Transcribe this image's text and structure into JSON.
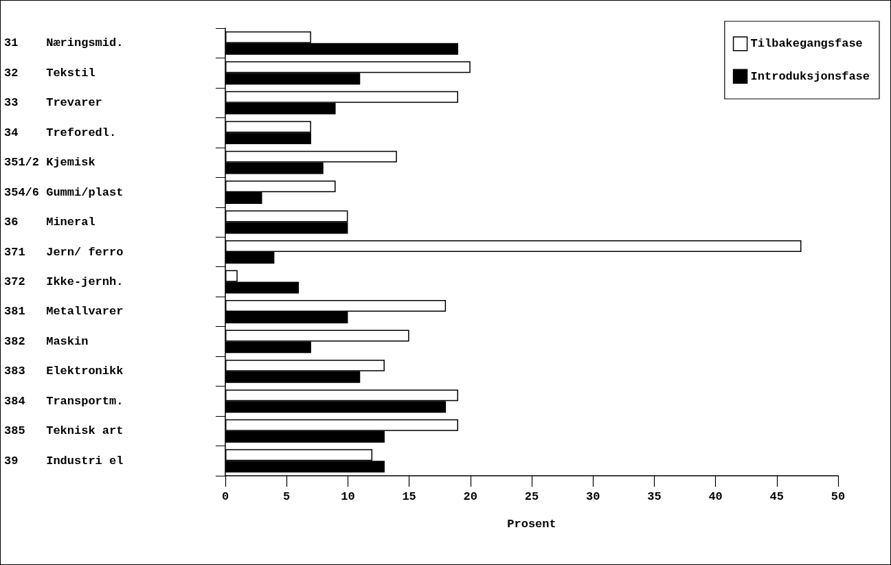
{
  "chart_data": {
    "type": "bar",
    "orientation": "horizontal",
    "xlabel": "Prosent",
    "categories": [
      "31    Næringsmid.",
      "32    Tekstil",
      "33    Trevarer",
      "34    Treforedl.",
      "351/2 Kjemisk",
      "354/6 Gummi/plast",
      "36    Mineral",
      "371   Jern/ ferro",
      "372   Ikke-jernh.",
      "381   Metallvarer",
      "382   Maskin",
      "383   Elektronikk",
      "384   Transportm.",
      "385   Teknisk art",
      "39    Industri el"
    ],
    "series": [
      {
        "name": "Tilbakegangsfase",
        "color": "#ffffff",
        "values": [
          7,
          20,
          19,
          7,
          14,
          9,
          10,
          47,
          1,
          18,
          15,
          13,
          19,
          19,
          12
        ]
      },
      {
        "name": "Introduksjonsfase",
        "color": "#000000",
        "values": [
          19,
          11,
          9,
          7,
          8,
          3,
          10,
          4,
          6,
          10,
          7,
          11,
          18,
          13,
          13
        ]
      }
    ],
    "xlim": [
      0,
      50
    ],
    "xticks": [
      0,
      5,
      10,
      15,
      20,
      25,
      30,
      35,
      40,
      45,
      50
    ],
    "grid": false,
    "legend": "top right"
  }
}
